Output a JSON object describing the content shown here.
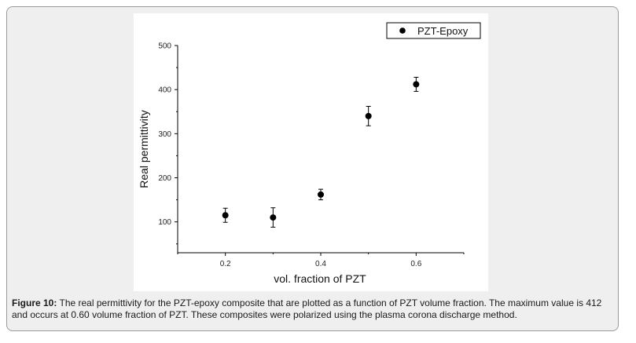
{
  "chart_data": {
    "type": "scatter",
    "xlabel": "vol. fraction of PZT",
    "ylabel": "Real permittivity",
    "xlim": [
      0.1,
      0.7
    ],
    "ylim": [
      30,
      500
    ],
    "x_ticks": [
      "0.2",
      "0.4",
      "0.6"
    ],
    "x_tick_values": [
      0.2,
      0.4,
      0.6
    ],
    "y_ticks": [
      "100",
      "200",
      "300",
      "400",
      "500"
    ],
    "y_tick_values": [
      100,
      200,
      300,
      400,
      500
    ],
    "legend": {
      "label": "PZT-Epoxy",
      "position": "top-right"
    },
    "series": [
      {
        "name": "PZT-Epoxy",
        "marker": "circle",
        "color": "#000000",
        "x": [
          0.2,
          0.3,
          0.4,
          0.5,
          0.6
        ],
        "y": [
          115,
          110,
          162,
          340,
          412
        ],
        "error": [
          16,
          22,
          12,
          22,
          16
        ]
      }
    ]
  },
  "caption": {
    "label": "Figure 10:",
    "text": "The real permittivity for the PZT-epoxy composite that are plotted as a function of PZT volume fraction. The maximum value is 412 and occurs at 0.60 volume fraction of PZT. These composites were polarized using the plasma corona discharge method."
  }
}
